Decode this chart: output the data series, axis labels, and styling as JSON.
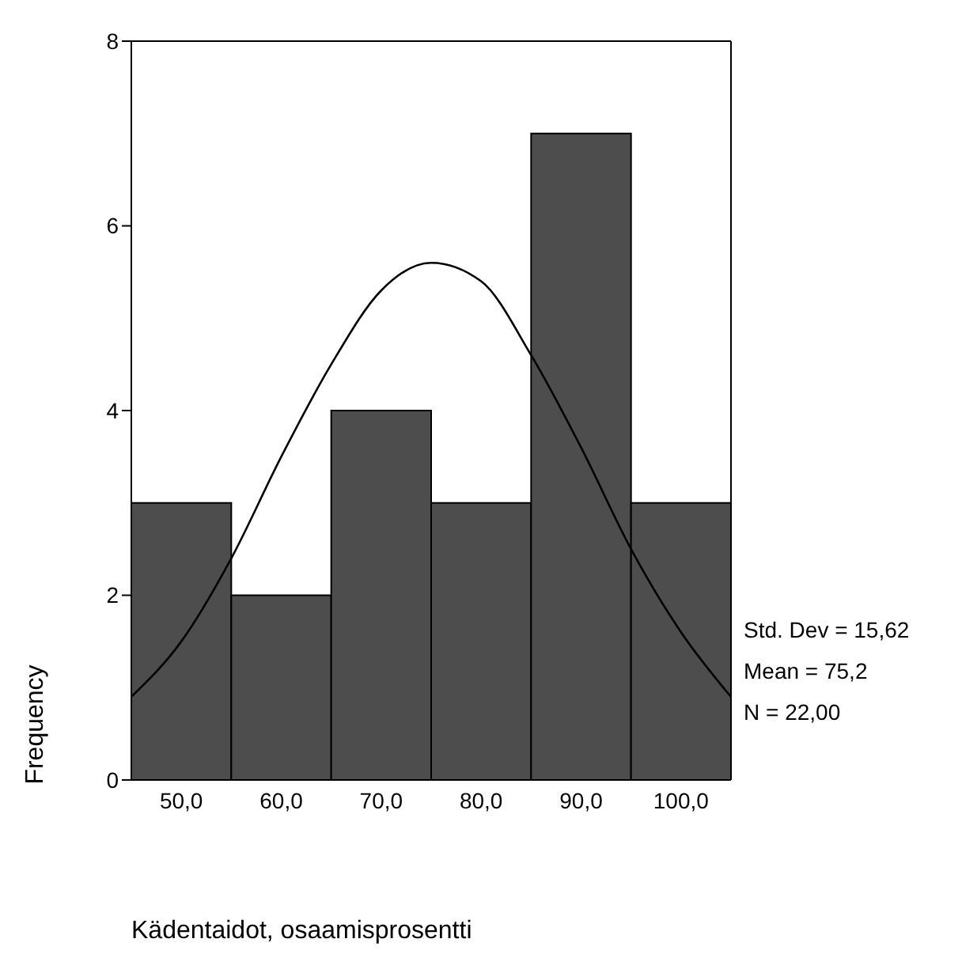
{
  "chart_data": {
    "type": "histogram",
    "xlabel": "Kädentaidot, osaamisprosentti",
    "ylabel": "Frequency",
    "bins": [
      45,
      55,
      65,
      75,
      85,
      95,
      105
    ],
    "values": [
      3,
      2,
      4,
      3,
      7,
      3
    ],
    "color": "#4d4d4d",
    "series": [
      {
        "type": "line",
        "color": "#000000",
        "x": [
          45,
          50,
          55,
          60,
          65,
          70,
          75,
          80,
          85,
          90,
          95,
          100,
          105
        ],
        "values": [
          0.9,
          1.5,
          2.4,
          3.5,
          4.5,
          5.3,
          5.6,
          5.4,
          4.6,
          3.6,
          2.5,
          1.6,
          0.9
        ]
      }
    ],
    "xlim": [
      45,
      105
    ],
    "xticks": [
      {
        "value": 50,
        "label": "50,0"
      },
      {
        "value": 60,
        "label": "60,0"
      },
      {
        "value": 70,
        "label": "70,0"
      },
      {
        "value": 80,
        "label": "80,0"
      },
      {
        "value": 90,
        "label": "90,0"
      },
      {
        "value": 100,
        "label": "100,0"
      }
    ],
    "ylim": [
      0,
      8
    ],
    "yticks": [
      0,
      2,
      4,
      6,
      8
    ],
    "grid": false,
    "legend": false,
    "annotations": [
      "Std. Dev = 15,62",
      "Mean = 75,2",
      "N = 22,00"
    ]
  }
}
